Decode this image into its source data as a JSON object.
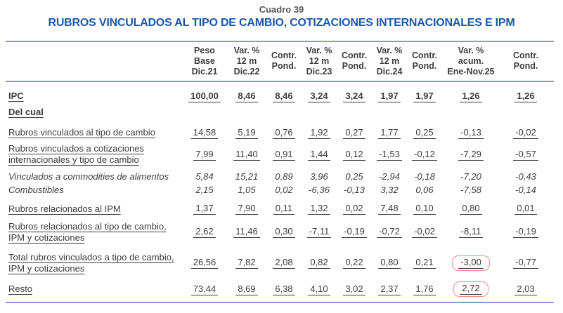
{
  "colors": {
    "title-blue": "#1B57A8",
    "caption-gray": "#565759",
    "line-blue": "#8C99C6",
    "text": "#3C3C3E",
    "highlight-red": "#E8908F"
  },
  "header": {
    "caption": "Cuadro 39",
    "title": "RUBROS VINCULADOS AL TIPO DE CAMBIO, COTIZACIONES INTERNACIONALES E IPM"
  },
  "table": {
    "columns": [
      "Peso\nBase\nDic.21",
      "Var. %\n12 m\nDic.22",
      "Contr.\nPond.",
      "Var. %\n12 m\nDic.23",
      "Contr.\nPond.",
      "Var. %\n12 m\nDic.24",
      "Contr.\nPond.",
      "Var. %\nacum.\nEne-Nov.25",
      "Contr.\nPond."
    ],
    "rows": [
      {
        "label": "IPC",
        "style": "bold",
        "underline": true,
        "values": [
          "100,00",
          "8,46",
          "8,46",
          "3,24",
          "3,24",
          "1,97",
          "1,97",
          "1,26",
          "1,26"
        ]
      },
      {
        "label": "Del cual",
        "style": "bold",
        "underline": true,
        "values": []
      },
      {
        "label": "Rubros vinculados al tipo de cambio",
        "style": "normal",
        "underline": true,
        "values": [
          "14,58",
          "5,19",
          "0,76",
          "1,92",
          "0,27",
          "1,77",
          "0,25",
          "-0,13",
          "-0,02"
        ]
      },
      {
        "label": "Rubros vinculados a cotizaciones internacionales y tipo de cambio",
        "style": "normal",
        "underline": true,
        "values": [
          "7,99",
          "11,40",
          "0,91",
          "1,44",
          "0,12",
          "-1,53",
          "-0,12",
          "-7,29",
          "-0,57"
        ]
      },
      {
        "label": "Vinculados a commodities de alimentos",
        "style": "italic",
        "underline": false,
        "values": [
          "5,84",
          "15,21",
          "0,89",
          "3,96",
          "0,25",
          "-2,94",
          "-0,18",
          "-7,20",
          "-0,43"
        ]
      },
      {
        "label": "Combustibles",
        "style": "italic",
        "underline": false,
        "values": [
          "2,15",
          "1,05",
          "0,02",
          "-6,36",
          "-0,13",
          "3,32",
          "0,06",
          "-7,58",
          "-0,14"
        ]
      },
      {
        "label": "Rubros relacionados al IPM",
        "style": "normal",
        "underline": true,
        "values": [
          "1,37",
          "7,90",
          "0,11",
          "1,32",
          "0,02",
          "7,48",
          "0,10",
          "0,80",
          "0,01"
        ]
      },
      {
        "label": "Rubros relacionados al tipo de cambio, IPM y cotizaciones",
        "style": "normal",
        "underline": true,
        "values": [
          "2,62",
          "11,46",
          "0,30",
          "-7,11",
          "-0,19",
          "-0,72",
          "-0,02",
          "-8,11",
          "-0,19"
        ]
      },
      {
        "label": "Total rubros vinculados a tipo de cambio, IPM y cotizaciones",
        "style": "normal",
        "underline": true,
        "values": [
          "26,56",
          "7,82",
          "2,08",
          "0,82",
          "0,22",
          "0,80",
          "0,21",
          "-3,00",
          "-0,77"
        ],
        "highlight_col": 7
      },
      {
        "label": "Resto",
        "style": "normal",
        "underline": true,
        "values": [
          "73,44",
          "8,69",
          "6,38",
          "4,10",
          "3,02",
          "2,37",
          "1,76",
          "2,72",
          "2,03"
        ],
        "highlight_col": 7
      }
    ]
  }
}
